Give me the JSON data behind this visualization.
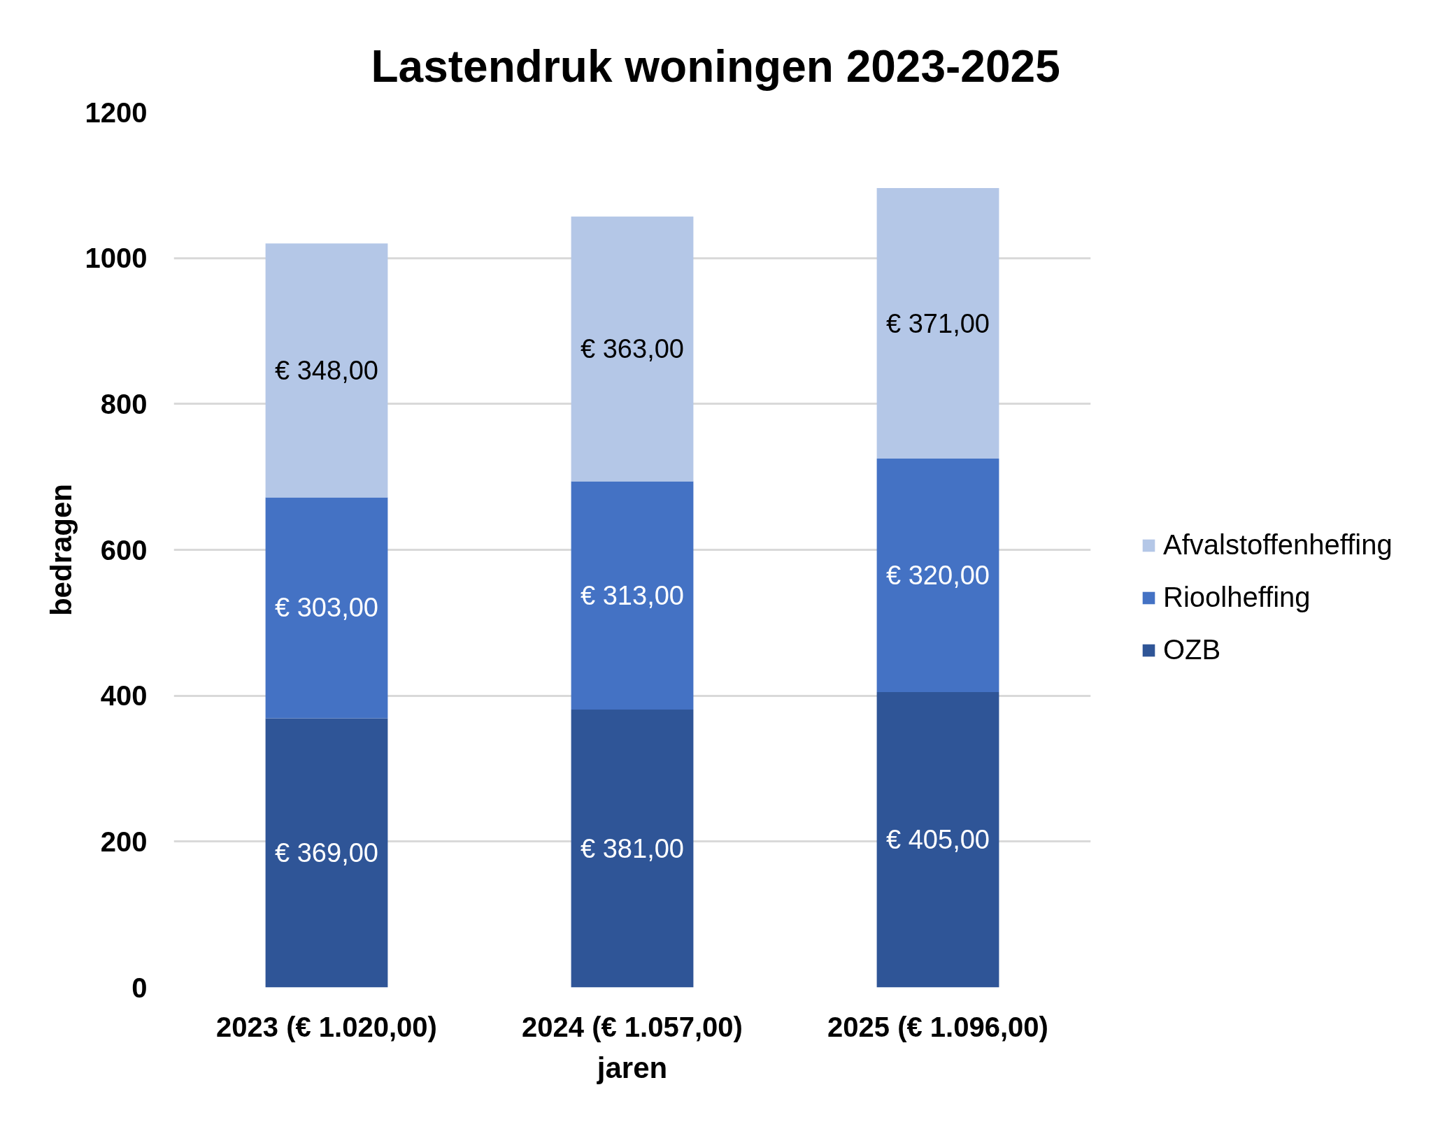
{
  "chart_data": {
    "type": "bar",
    "title": "Lastendruk woningen 2023-2025",
    "xlabel": "jaren",
    "ylabel": "bedragen",
    "categories": [
      "2023 (€ 1.020,00)",
      "2024 (€ 1.057,00)",
      "2025 (€ 1.096,00)"
    ],
    "stacked": true,
    "series": [
      {
        "name": "OZB",
        "color": "#2f5597",
        "values": [
          369,
          381,
          405
        ],
        "value_labels": [
          "€ 369,00",
          "€ 381,00",
          "€ 405,00"
        ]
      },
      {
        "name": "Rioolheffing",
        "color": "#4472c4",
        "values": [
          303,
          313,
          320
        ],
        "value_labels": [
          "€ 303,00",
          "€ 313,00",
          "€ 320,00"
        ]
      },
      {
        "name": "Afvalstoffenheffing",
        "color": "#b4c7e7",
        "values": [
          348,
          363,
          371
        ],
        "value_labels": [
          "€ 348,00",
          "€ 363,00",
          "€ 371,00"
        ]
      }
    ],
    "ylim": [
      0,
      1200
    ],
    "yticks": [
      0,
      200,
      400,
      600,
      800,
      1000,
      1200
    ],
    "grid": "y",
    "legend": "right"
  }
}
